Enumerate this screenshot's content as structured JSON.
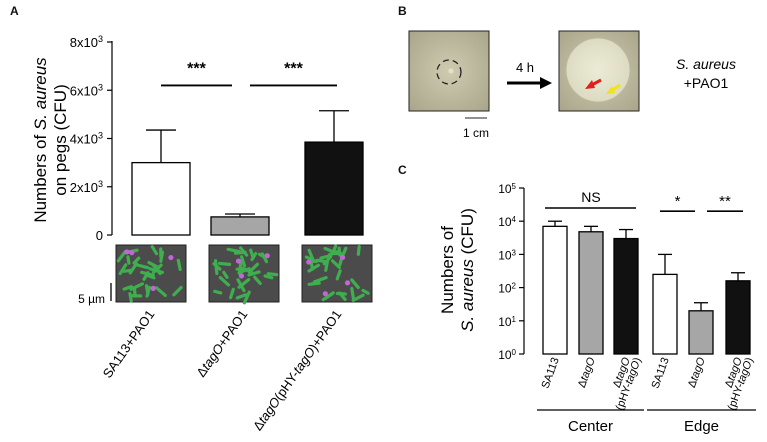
{
  "panels": {
    "a": {
      "letter": "A"
    },
    "b": {
      "letter": "B",
      "arrow_label": "4 h",
      "scale_label": "1 cm",
      "caption_line1": "S. aureus",
      "caption_line2": "+PAO1"
    },
    "c": {
      "letter": "C"
    }
  },
  "colors": {
    "white_bar": "#ffffff",
    "gray_bar": "#a6a6a6",
    "black_bar": "#111111",
    "bacteria_green": "#3fae4f",
    "bacteria_magenta": "#c266d6",
    "plate_bg": "#c9c6aa",
    "arrow_red": "#e0201a",
    "arrow_yellow": "#f0e21c"
  },
  "chart_data": [
    {
      "type": "bar",
      "panel": "A",
      "categories": [
        "SA113+PAO1",
        "ΔtagO+PAO1",
        "ΔtagO(pHY-tagO)+PAO1"
      ],
      "values": [
        3000,
        750,
        3850
      ],
      "errors": [
        1350,
        120,
        1300
      ],
      "bar_colors": [
        "#ffffff",
        "#a6a6a6",
        "#111111"
      ],
      "ylim": [
        0,
        8000
      ],
      "yticks": [
        0,
        2000,
        4000,
        6000,
        8000
      ],
      "ytick_labels": [
        {
          "base": "0",
          "exp": ""
        },
        {
          "base": "2x10",
          "exp": "3"
        },
        {
          "base": "4x10",
          "exp": "3"
        },
        {
          "base": "6x10",
          "exp": "3"
        },
        {
          "base": "8x10",
          "exp": "3"
        }
      ],
      "ylabel_line1_pre": "Numbers of ",
      "ylabel_line1_italic": "S. aureus",
      "ylabel_line2": "on pegs (CFU)",
      "significance": [
        {
          "from": 0,
          "to": 1,
          "y": 6200,
          "label": "***"
        },
        {
          "from": 1,
          "to": 2,
          "y": 6200,
          "label": "***"
        }
      ],
      "micrograph_scale_label": "5 µm",
      "xtick_labels": [
        [
          {
            "t": "SA113+PAO1",
            "i": false
          }
        ],
        [
          {
            "t": "Δ",
            "i": false
          },
          {
            "t": "tagO",
            "i": true
          },
          {
            "t": "+PAO1",
            "i": false
          }
        ],
        [
          {
            "t": "Δ",
            "i": false
          },
          {
            "t": "tagO",
            "i": true
          },
          {
            "t": "(pHY-",
            "i": false
          },
          {
            "t": "tagO",
            "i": true
          },
          {
            "t": ")+PAO1",
            "i": false
          }
        ]
      ]
    },
    {
      "type": "bar",
      "panel": "C",
      "yscale": "log",
      "ylim": [
        1,
        100000
      ],
      "ytick_exps": [
        0,
        1,
        2,
        3,
        4,
        5
      ],
      "ylabel_line1": "Numbers of",
      "ylabel_line2_italic": "S. aureus",
      "ylabel_line2_post": " (CFU)",
      "groups": [
        {
          "name": "Center",
          "values": [
            7000,
            4800,
            3000
          ],
          "err_upper": [
            10000,
            7000,
            5600
          ],
          "significance": {
            "label": "NS",
            "from": 0,
            "to": 2,
            "y": 25000
          }
        },
        {
          "name": "Edge",
          "values": [
            250,
            20,
            160
          ],
          "err_upper": [
            1000,
            35,
            280
          ],
          "significance_pairs": [
            {
              "label": "*",
              "from": 0,
              "to": 1,
              "y": 20000
            },
            {
              "label": "**",
              "from": 1,
              "to": 2,
              "y": 20000
            }
          ]
        }
      ],
      "bar_colors": [
        "#ffffff",
        "#a6a6a6",
        "#111111"
      ],
      "xtick_labels": [
        [
          {
            "t": "SA113",
            "i": false
          }
        ],
        [
          {
            "t": "Δ",
            "i": false
          },
          {
            "t": "tagO",
            "i": true
          }
        ],
        [
          {
            "t": "Δ",
            "i": false
          },
          {
            "t": "tagO",
            "i": true
          }
        ],
        [
          {
            "t": "(pHY-",
            "i": false
          },
          {
            "t": "tagO",
            "i": true
          },
          {
            "t": ")",
            "i": false
          }
        ]
      ]
    }
  ]
}
